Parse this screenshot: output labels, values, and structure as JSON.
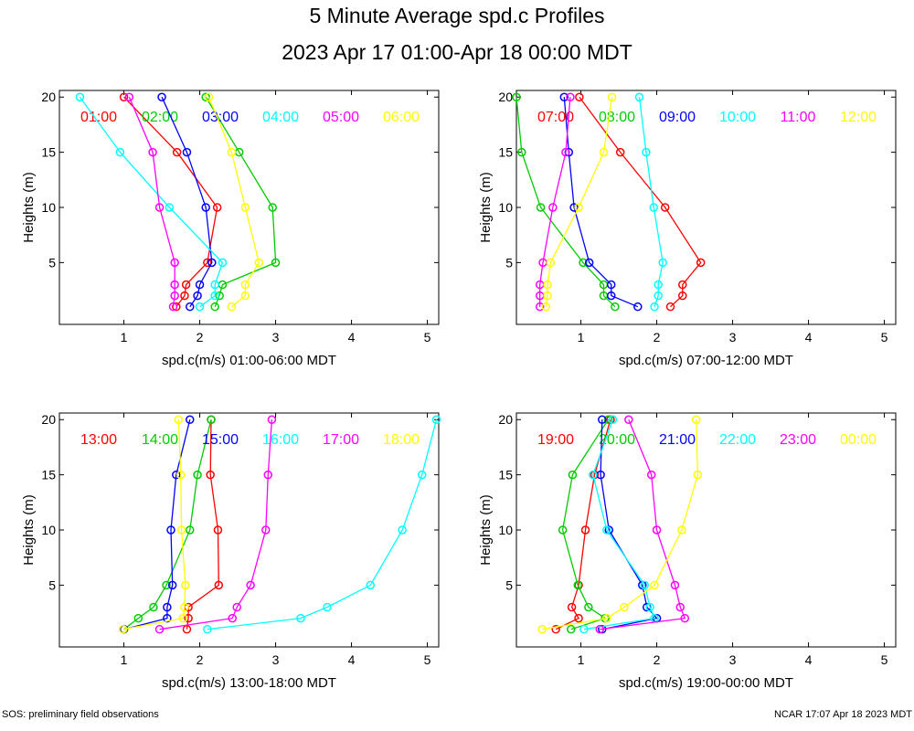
{
  "header": {
    "title": "5 Minute Average spd.c Profiles",
    "subtitle": "2023 Apr 17 01:00-Apr 18 00:00 MDT"
  },
  "footer": {
    "left": "SOS: preliminary field observations",
    "right": "NCAR 17:07 Apr 18 2023 MDT"
  },
  "chart_data": [
    {
      "type": "line",
      "title": "",
      "xlabel": "spd.c(m/s) 01:00-06:00 MDT",
      "ylabel": "Heights (m)",
      "xlim": [
        0.15,
        5.15
      ],
      "ylim": [
        -0.6,
        20.6
      ],
      "xticks": [
        1,
        2,
        3,
        4,
        5
      ],
      "yticks": [
        5,
        10,
        15,
        20
      ],
      "heights": [
        1,
        2,
        3,
        5,
        10,
        15,
        20
      ],
      "series": [
        {
          "name": "01:00",
          "color": "#ff0000",
          "values": [
            1.69,
            1.8,
            1.82,
            2.1,
            2.23,
            1.7,
            1.0
          ]
        },
        {
          "name": "02:00",
          "color": "#00cc00",
          "values": [
            2.2,
            2.26,
            2.3,
            3.0,
            2.96,
            2.52,
            2.08
          ]
        },
        {
          "name": "03:00",
          "color": "#0000ff",
          "values": [
            1.87,
            1.97,
            2.0,
            2.16,
            2.08,
            1.83,
            1.5
          ]
        },
        {
          "name": "04:00",
          "color": "#00ffff",
          "values": [
            2.0,
            2.2,
            2.2,
            2.3,
            1.6,
            0.95,
            0.42
          ]
        },
        {
          "name": "05:00",
          "color": "#ff00ff",
          "values": [
            1.65,
            1.67,
            1.67,
            1.67,
            1.47,
            1.38,
            1.07
          ]
        },
        {
          "name": "06:00",
          "color": "#ffff00",
          "values": [
            2.42,
            2.6,
            2.6,
            2.78,
            2.6,
            2.42,
            2.12
          ]
        }
      ]
    },
    {
      "type": "line",
      "title": "",
      "xlabel": "spd.c(m/s) 07:00-12:00 MDT",
      "ylabel": "Heights (m)",
      "xlim": [
        0.15,
        5.15
      ],
      "ylim": [
        -0.6,
        20.6
      ],
      "xticks": [
        1,
        2,
        3,
        4,
        5
      ],
      "yticks": [
        5,
        10,
        15,
        20
      ],
      "heights": [
        1,
        2,
        3,
        5,
        10,
        15,
        20
      ],
      "series": [
        {
          "name": "07:00",
          "color": "#ff0000",
          "values": [
            2.18,
            2.34,
            2.34,
            2.58,
            2.11,
            1.52,
            0.98
          ]
        },
        {
          "name": "08:00",
          "color": "#00cc00",
          "values": [
            1.45,
            1.3,
            1.3,
            1.03,
            0.47,
            0.22,
            0.15
          ]
        },
        {
          "name": "09:00",
          "color": "#0000ff",
          "values": [
            1.75,
            1.4,
            1.4,
            1.11,
            0.91,
            0.84,
            0.78
          ]
        },
        {
          "name": "10:00",
          "color": "#00ffff",
          "values": [
            1.97,
            2.02,
            2.02,
            2.08,
            1.96,
            1.86,
            1.77
          ]
        },
        {
          "name": "11:00",
          "color": "#ff00ff",
          "values": [
            0.46,
            0.46,
            0.46,
            0.5,
            0.63,
            0.8,
            0.86
          ]
        },
        {
          "name": "12:00",
          "color": "#ffff00",
          "values": [
            0.54,
            0.56,
            0.56,
            0.6,
            0.97,
            1.3,
            1.41
          ]
        }
      ]
    },
    {
      "type": "line",
      "title": "",
      "xlabel": "spd.c(m/s) 13:00-18:00 MDT",
      "ylabel": "Heights (m)",
      "xlim": [
        0.15,
        5.15
      ],
      "ylim": [
        -0.6,
        20.6
      ],
      "xticks": [
        1,
        2,
        3,
        4,
        5
      ],
      "yticks": [
        5,
        10,
        15,
        20
      ],
      "heights": [
        1,
        2,
        3,
        5,
        10,
        15,
        20
      ],
      "series": [
        {
          "name": "13:00",
          "color": "#ff0000",
          "values": [
            1.83,
            1.85,
            1.85,
            2.25,
            2.24,
            2.14,
            2.15
          ]
        },
        {
          "name": "14:00",
          "color": "#00cc00",
          "values": [
            1.0,
            1.19,
            1.39,
            1.56,
            1.87,
            1.97,
            2.15
          ]
        },
        {
          "name": "15:00",
          "color": "#0000ff",
          "values": [
            1.0,
            1.57,
            1.57,
            1.64,
            1.62,
            1.69,
            1.87
          ]
        },
        {
          "name": "16:00",
          "color": "#00ffff",
          "values": [
            2.1,
            3.33,
            3.68,
            4.25,
            4.67,
            4.93,
            5.12
          ]
        },
        {
          "name": "17:00",
          "color": "#ff00ff",
          "values": [
            1.47,
            2.43,
            2.49,
            2.67,
            2.87,
            2.9,
            2.95
          ]
        },
        {
          "name": "18:00",
          "color": "#ffff00",
          "values": [
            0.99,
            1.78,
            1.8,
            1.81,
            1.76,
            1.75,
            1.72
          ]
        }
      ]
    },
    {
      "type": "line",
      "title": "",
      "xlabel": "spd.c(m/s) 19:00-00:00 MDT",
      "ylabel": "Heights (m)",
      "xlim": [
        0.15,
        5.15
      ],
      "ylim": [
        -0.6,
        20.6
      ],
      "xticks": [
        1,
        2,
        3,
        4,
        5
      ],
      "yticks": [
        5,
        10,
        15,
        20
      ],
      "heights": [
        1,
        2,
        3,
        5,
        10,
        15,
        20
      ],
      "series": [
        {
          "name": "19:00",
          "color": "#ff0000",
          "values": [
            0.67,
            0.97,
            0.88,
            0.97,
            1.06,
            1.18,
            1.39
          ]
        },
        {
          "name": "20:00",
          "color": "#00cc00",
          "values": [
            0.87,
            1.32,
            1.1,
            0.96,
            0.76,
            0.89,
            1.36
          ]
        },
        {
          "name": "21:00",
          "color": "#0000ff",
          "values": [
            1.28,
            2.0,
            1.87,
            1.81,
            1.37,
            1.26,
            1.28
          ]
        },
        {
          "name": "22:00",
          "color": "#00ffff",
          "values": [
            1.04,
            1.97,
            1.91,
            1.84,
            1.34,
            1.16,
            1.42
          ]
        },
        {
          "name": "23:00",
          "color": "#ff00ff",
          "values": [
            1.25,
            2.37,
            2.31,
            2.24,
            2.0,
            1.93,
            1.63
          ]
        },
        {
          "name": "00:00",
          "color": "#ffff00",
          "values": [
            0.49,
            1.34,
            1.57,
            1.97,
            2.33,
            2.54,
            2.52
          ]
        }
      ]
    }
  ]
}
